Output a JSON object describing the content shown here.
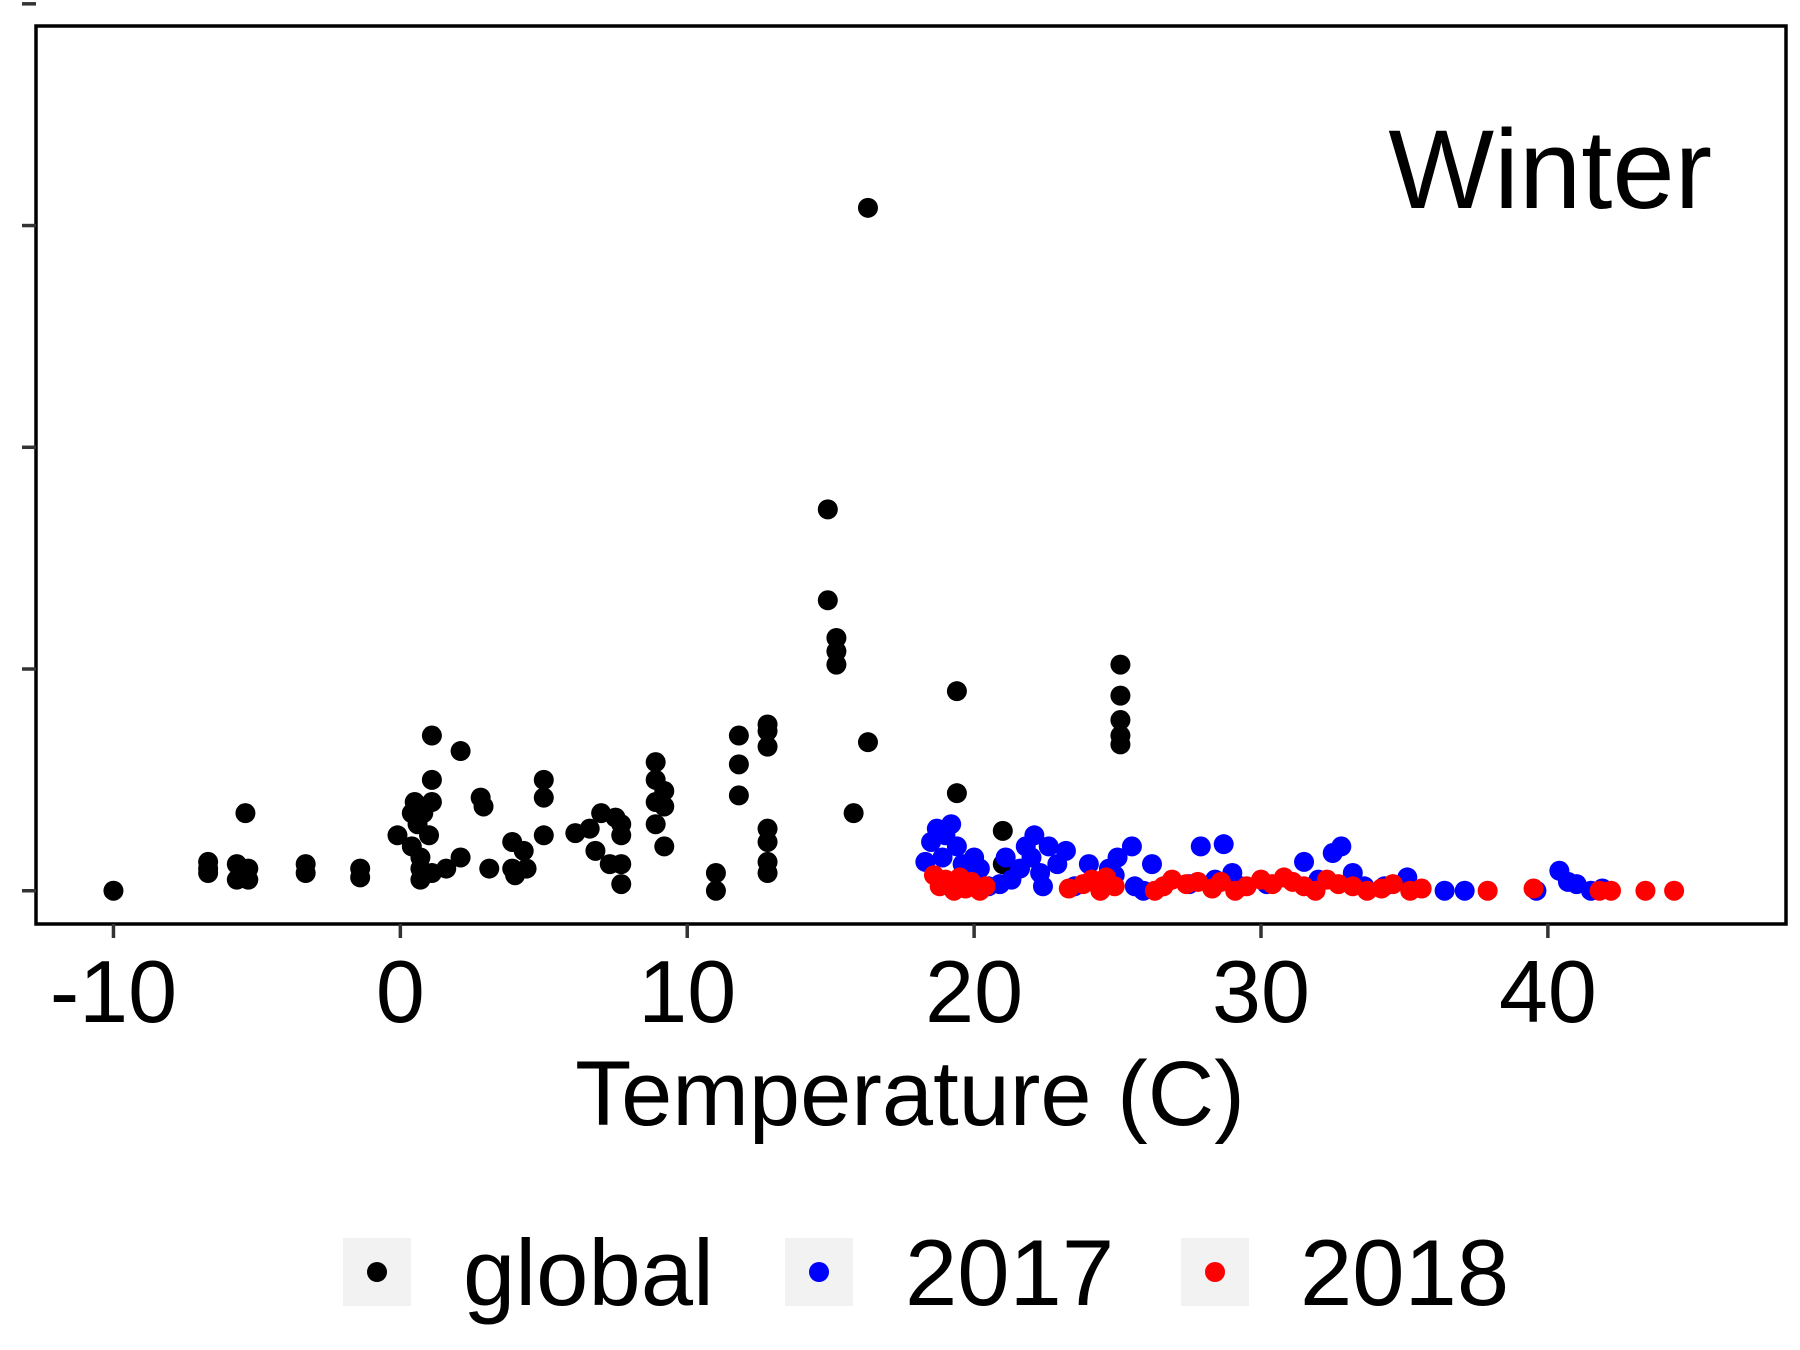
{
  "chart_data": {
    "type": "scatter",
    "annotation": "Winter",
    "xlabel": "Temperature (C)",
    "ylabel": "",
    "xlim": [
      -12.7,
      48.3
    ],
    "ylim": [
      -0.15,
      3.9
    ],
    "x_ticks": [
      -10,
      0,
      10,
      20,
      30,
      40
    ],
    "x_tick_labels": [
      "-10",
      "0",
      "10",
      "20",
      "30",
      "40"
    ],
    "y_ticks": [
      0,
      1,
      2,
      3,
      4
    ],
    "y_tick_labels": [
      "",
      "",
      "",
      "",
      ""
    ],
    "grid": false,
    "legend": {
      "position": "bottom"
    },
    "series": [
      {
        "name": "global",
        "color": "#000000",
        "points": [
          [
            -10.0,
            0.0
          ],
          [
            -6.7,
            0.13
          ],
          [
            -6.7,
            0.1
          ],
          [
            -6.7,
            0.08
          ],
          [
            -5.7,
            0.12
          ],
          [
            -5.7,
            0.05
          ],
          [
            -5.4,
            0.35
          ],
          [
            -5.3,
            0.1
          ],
          [
            -5.3,
            0.05
          ],
          [
            -3.3,
            0.12
          ],
          [
            -3.3,
            0.08
          ],
          [
            -1.4,
            0.1
          ],
          [
            -1.4,
            0.06
          ],
          [
            -0.1,
            0.25
          ],
          [
            0.4,
            0.35
          ],
          [
            0.4,
            0.2
          ],
          [
            0.5,
            0.4
          ],
          [
            0.6,
            0.3
          ],
          [
            0.7,
            0.15
          ],
          [
            0.7,
            0.1
          ],
          [
            0.7,
            0.05
          ],
          [
            0.8,
            0.35
          ],
          [
            1.1,
            0.7
          ],
          [
            1.1,
            0.5
          ],
          [
            1.1,
            0.4
          ],
          [
            1.0,
            0.25
          ],
          [
            1.1,
            0.08
          ],
          [
            1.6,
            0.1
          ],
          [
            2.1,
            0.63
          ],
          [
            2.1,
            0.15
          ],
          [
            2.8,
            0.42
          ],
          [
            2.9,
            0.38
          ],
          [
            3.1,
            0.1
          ],
          [
            3.9,
            0.22
          ],
          [
            3.9,
            0.1
          ],
          [
            4.0,
            0.07
          ],
          [
            4.3,
            0.18
          ],
          [
            4.4,
            0.1
          ],
          [
            5.0,
            0.5
          ],
          [
            5.0,
            0.42
          ],
          [
            5.0,
            0.25
          ],
          [
            6.1,
            0.26
          ],
          [
            6.6,
            0.28
          ],
          [
            6.8,
            0.18
          ],
          [
            7.0,
            0.35
          ],
          [
            7.3,
            0.12
          ],
          [
            7.5,
            0.33
          ],
          [
            7.7,
            0.3
          ],
          [
            7.7,
            0.25
          ],
          [
            7.7,
            0.12
          ],
          [
            7.7,
            0.03
          ],
          [
            8.9,
            0.58
          ],
          [
            8.9,
            0.5
          ],
          [
            8.9,
            0.4
          ],
          [
            8.9,
            0.3
          ],
          [
            9.2,
            0.45
          ],
          [
            9.2,
            0.38
          ],
          [
            9.2,
            0.2
          ],
          [
            11.0,
            0.08
          ],
          [
            11.0,
            0.0
          ],
          [
            11.8,
            0.7
          ],
          [
            11.8,
            0.57
          ],
          [
            11.8,
            0.43
          ],
          [
            12.8,
            0.75
          ],
          [
            12.8,
            0.72
          ],
          [
            12.8,
            0.65
          ],
          [
            12.8,
            0.28
          ],
          [
            12.8,
            0.22
          ],
          [
            12.8,
            0.13
          ],
          [
            12.8,
            0.08
          ],
          [
            14.9,
            1.72
          ],
          [
            14.9,
            1.31
          ],
          [
            15.2,
            1.14
          ],
          [
            15.2,
            1.08
          ],
          [
            15.2,
            1.02
          ],
          [
            15.8,
            0.35
          ],
          [
            16.3,
            3.08
          ],
          [
            16.3,
            0.67
          ],
          [
            19.4,
            0.9
          ],
          [
            19.4,
            0.44
          ],
          [
            21.0,
            0.27
          ],
          [
            21.0,
            0.12
          ],
          [
            25.1,
            1.02
          ],
          [
            25.1,
            0.88
          ],
          [
            25.1,
            0.77
          ],
          [
            25.1,
            0.7
          ],
          [
            25.1,
            0.66
          ]
        ]
      },
      {
        "name": "2017",
        "color": "#0000ff",
        "points": [
          [
            18.3,
            0.13
          ],
          [
            18.5,
            0.22
          ],
          [
            18.7,
            0.28
          ],
          [
            18.9,
            0.15
          ],
          [
            19.0,
            0.25
          ],
          [
            19.2,
            0.3
          ],
          [
            19.4,
            0.2
          ],
          [
            19.6,
            0.12
          ],
          [
            19.8,
            0.08
          ],
          [
            20.0,
            0.15
          ],
          [
            20.2,
            0.1
          ],
          [
            20.5,
            0.02
          ],
          [
            20.9,
            0.03
          ],
          [
            21.1,
            0.15
          ],
          [
            21.3,
            0.05
          ],
          [
            21.6,
            0.1
          ],
          [
            21.8,
            0.2
          ],
          [
            22.0,
            0.15
          ],
          [
            22.1,
            0.25
          ],
          [
            22.3,
            0.08
          ],
          [
            22.4,
            0.02
          ],
          [
            22.6,
            0.2
          ],
          [
            22.9,
            0.12
          ],
          [
            23.2,
            0.18
          ],
          [
            23.5,
            0.02
          ],
          [
            24.0,
            0.12
          ],
          [
            24.7,
            0.1
          ],
          [
            24.9,
            0.07
          ],
          [
            25.0,
            0.15
          ],
          [
            25.5,
            0.2
          ],
          [
            25.6,
            0.02
          ],
          [
            25.9,
            0.0
          ],
          [
            26.2,
            0.12
          ],
          [
            27.5,
            0.03
          ],
          [
            27.9,
            0.2
          ],
          [
            28.4,
            0.05
          ],
          [
            28.7,
            0.21
          ],
          [
            29.0,
            0.08
          ],
          [
            29.3,
            0.02
          ],
          [
            30.2,
            0.03
          ],
          [
            31.5,
            0.13
          ],
          [
            32.0,
            0.05
          ],
          [
            32.5,
            0.17
          ],
          [
            32.8,
            0.2
          ],
          [
            33.2,
            0.08
          ],
          [
            33.6,
            0.02
          ],
          [
            34.3,
            0.02
          ],
          [
            35.1,
            0.06
          ],
          [
            36.4,
            0.0
          ],
          [
            37.1,
            0.0
          ],
          [
            39.6,
            0.0
          ],
          [
            40.4,
            0.09
          ],
          [
            40.7,
            0.04
          ],
          [
            41.0,
            0.03
          ],
          [
            41.5,
            0.0
          ],
          [
            41.9,
            0.01
          ]
        ]
      },
      {
        "name": "2018",
        "color": "#ff0000",
        "points": [
          [
            18.6,
            0.07
          ],
          [
            18.8,
            0.02
          ],
          [
            19.0,
            0.05
          ],
          [
            19.3,
            0.0
          ],
          [
            19.5,
            0.06
          ],
          [
            19.7,
            0.01
          ],
          [
            19.9,
            0.04
          ],
          [
            20.2,
            0.0
          ],
          [
            20.4,
            0.02
          ],
          [
            23.3,
            0.01
          ],
          [
            23.8,
            0.03
          ],
          [
            24.1,
            0.05
          ],
          [
            24.4,
            0.0
          ],
          [
            24.6,
            0.06
          ],
          [
            24.9,
            0.02
          ],
          [
            26.3,
            0.0
          ],
          [
            26.6,
            0.02
          ],
          [
            26.9,
            0.05
          ],
          [
            27.4,
            0.03
          ],
          [
            27.8,
            0.04
          ],
          [
            28.3,
            0.01
          ],
          [
            28.6,
            0.04
          ],
          [
            29.1,
            0.0
          ],
          [
            29.5,
            0.02
          ],
          [
            30.0,
            0.05
          ],
          [
            30.4,
            0.03
          ],
          [
            30.8,
            0.06
          ],
          [
            31.1,
            0.04
          ],
          [
            31.5,
            0.02
          ],
          [
            31.9,
            0.0
          ],
          [
            32.3,
            0.05
          ],
          [
            32.7,
            0.03
          ],
          [
            33.2,
            0.02
          ],
          [
            33.7,
            0.0
          ],
          [
            34.2,
            0.01
          ],
          [
            34.6,
            0.03
          ],
          [
            35.2,
            0.0
          ],
          [
            35.6,
            0.01
          ],
          [
            37.9,
            0.0
          ],
          [
            39.5,
            0.01
          ],
          [
            41.8,
            0.0
          ],
          [
            42.2,
            0.0
          ],
          [
            43.4,
            0.0
          ],
          [
            44.4,
            0.0
          ]
        ]
      }
    ]
  }
}
